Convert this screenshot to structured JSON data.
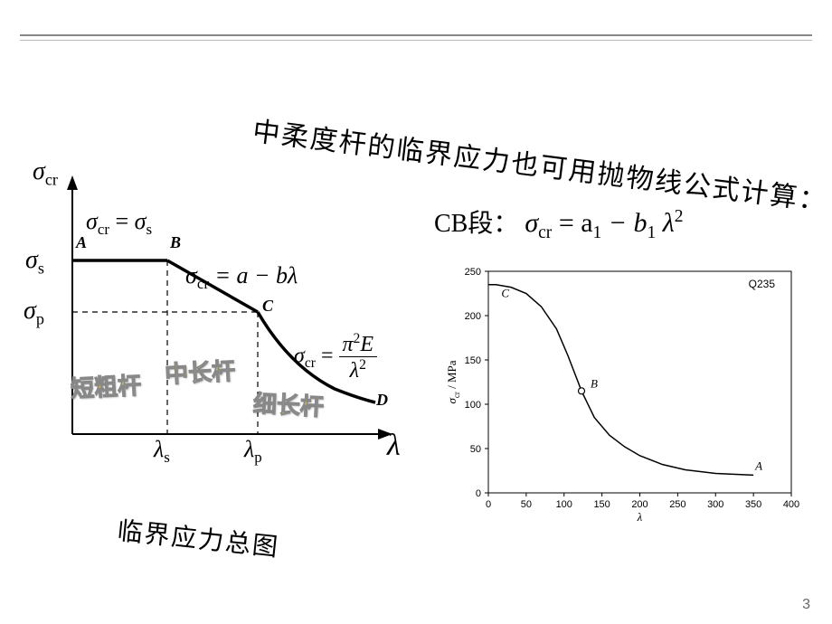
{
  "title": "中柔度杆的临界应力也可用抛物线公式计算：",
  "leftDiagram": {
    "yAxisTop": "σ",
    "yAxisTopSub": "cr",
    "ySigmaS": "σ",
    "ySigmaSSub": "s",
    "ySigmaP": "σ",
    "ySigmaPSub": "p",
    "xAxis": "λ",
    "xLambdaS": "λ",
    "xLambdaSSub": "s",
    "xLambdaP": "λ",
    "xLambdaPSub": "p",
    "ptA": "A",
    "ptB": "B",
    "ptC": "C",
    "ptD": "D",
    "formula1_left": "σ",
    "formula1_leftSub": "cr",
    "formula1_eq": " = ",
    "formula1_right": "σ",
    "formula1_rightSub": "s",
    "formula2": "σcr = a − bλ",
    "formula2_sigma": "σ",
    "formula2_sub": "cr",
    "formula2_rest": " = a − bλ",
    "formula3_sigma": "σ",
    "formula3_sub": "cr",
    "formula3_eq": " = ",
    "formula3_num": "π²E",
    "formula3_numPi": "π",
    "formula3_numE": "E",
    "formula3_den": "λ",
    "region1": "短粗杆",
    "region2": "中长杆",
    "region3": "细长杆",
    "caption": "临界应力总图",
    "curveColor": "#000000",
    "dashedColor": "#000000",
    "regionLabelColor": "#f5d742"
  },
  "cbLine": {
    "prefix": "CB段：",
    "sigma": "σ",
    "sigmaSub": "cr",
    "eq": " = a",
    "a_sub": "1",
    "minus": " − b",
    "b_sub": "1",
    "lambda": "λ",
    "sq": "2"
  },
  "rightChart": {
    "type": "line",
    "legend": "Q235",
    "xlabel": "λ",
    "ylabel": "σcr / MPa",
    "ylabel_sigma": "σ",
    "ylabel_sub": "cr",
    "ylabel_rest": " / MPa",
    "xlim": [
      0,
      400
    ],
    "ylim": [
      0,
      250
    ],
    "xticks": [
      0,
      50,
      100,
      150,
      200,
      250,
      300,
      350,
      400
    ],
    "yticks": [
      0,
      50,
      100,
      150,
      200,
      250
    ],
    "points": {
      "A": {
        "x": 350,
        "y": 20,
        "label": "A"
      },
      "B": {
        "x": 123,
        "y": 115,
        "label": "B"
      },
      "C": {
        "x": 10,
        "y": 235,
        "label": "C"
      }
    },
    "curve": [
      {
        "x": 0,
        "y": 235
      },
      {
        "x": 10,
        "y": 235
      },
      {
        "x": 30,
        "y": 232
      },
      {
        "x": 50,
        "y": 225
      },
      {
        "x": 70,
        "y": 210
      },
      {
        "x": 90,
        "y": 185
      },
      {
        "x": 105,
        "y": 155
      },
      {
        "x": 123,
        "y": 115
      },
      {
        "x": 140,
        "y": 85
      },
      {
        "x": 160,
        "y": 65
      },
      {
        "x": 180,
        "y": 52
      },
      {
        "x": 200,
        "y": 42
      },
      {
        "x": 230,
        "y": 32
      },
      {
        "x": 260,
        "y": 26
      },
      {
        "x": 300,
        "y": 22
      },
      {
        "x": 350,
        "y": 20
      }
    ],
    "lineColor": "#000000",
    "frameColor": "#000000",
    "tickFontSize": 11,
    "labelFontSize": 13,
    "background": "#ffffff"
  },
  "pageNumber": "3"
}
